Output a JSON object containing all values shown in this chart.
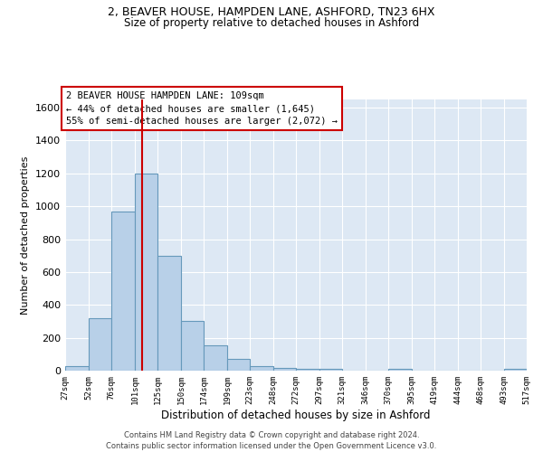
{
  "title_line1": "2, BEAVER HOUSE, HAMPDEN LANE, ASHFORD, TN23 6HX",
  "title_line2": "Size of property relative to detached houses in Ashford",
  "xlabel": "Distribution of detached houses by size in Ashford",
  "ylabel": "Number of detached properties",
  "footnote": "Contains HM Land Registry data © Crown copyright and database right 2024.\nContains public sector information licensed under the Open Government Licence v3.0.",
  "bar_color": "#b8d0e8",
  "bar_edge_color": "#6699bb",
  "background_color": "#dde8f4",
  "annotation_box_color": "#cc0000",
  "annotation_text_line1": "2 BEAVER HOUSE HAMPDEN LANE: 109sqm",
  "annotation_text_line2": "← 44% of detached houses are smaller (1,645)",
  "annotation_text_line3": "55% of semi-detached houses are larger (2,072) →",
  "redline_x": 109,
  "ylim": [
    0,
    1650
  ],
  "yticks": [
    0,
    200,
    400,
    600,
    800,
    1000,
    1200,
    1400,
    1600
  ],
  "bin_edges": [
    27,
    52,
    76,
    101,
    125,
    150,
    174,
    199,
    223,
    248,
    272,
    297,
    321,
    346,
    370,
    395,
    419,
    444,
    468,
    493,
    517
  ],
  "bar_heights": [
    30,
    320,
    970,
    1200,
    700,
    300,
    155,
    70,
    25,
    15,
    10,
    10,
    0,
    0,
    10,
    0,
    0,
    0,
    0,
    10
  ]
}
